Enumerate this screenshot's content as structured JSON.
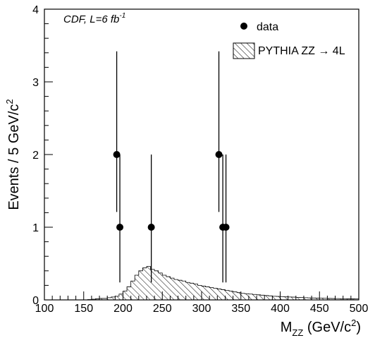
{
  "chart_data": {
    "type": "histogram+scatter",
    "xlabel": "M",
    "xlabel_sub": "ZZ",
    "xlabel_unit_pre": " (GeV/c",
    "xlabel_unit_sup": "2",
    "xlabel_unit_post": ")",
    "ylabel": "Events / 5 GeV/c",
    "ylabel_sup": "2",
    "xlim": [
      100,
      500
    ],
    "ylim": [
      0,
      4
    ],
    "x_ticks": [
      100,
      150,
      200,
      250,
      300,
      350,
      400,
      450,
      500
    ],
    "y_ticks": [
      0,
      1,
      2,
      3,
      4
    ],
    "annotation": {
      "main": "CDF, L=6 fb",
      "sup": "-1"
    },
    "legend": {
      "placement": "top-right",
      "data_label": "data",
      "mc_label": "PYTHIA ZZ → 4L"
    },
    "data_points": [
      {
        "x": 192,
        "y": 2,
        "err_low": 0.79,
        "err_high": 1.42
      },
      {
        "x": 196,
        "y": 1,
        "err_low": 0.76,
        "err_high": 1.0
      },
      {
        "x": 236,
        "y": 1,
        "err_low": 0.76,
        "err_high": 1.0
      },
      {
        "x": 322,
        "y": 2,
        "err_low": 0.79,
        "err_high": 1.42
      },
      {
        "x": 327,
        "y": 1,
        "err_low": 0.76,
        "err_high": 1.0
      },
      {
        "x": 331,
        "y": 1,
        "err_low": 0.76,
        "err_high": 1.0
      }
    ],
    "histogram": {
      "name": "PYTHIA ZZ → 4L",
      "bin_width": 5,
      "bin_start": 100,
      "values": [
        0.0,
        0.0,
        0.0,
        0.0,
        0.0,
        0.0,
        0.0,
        0.0,
        0.0,
        0.0,
        0.0,
        0.005,
        0.01,
        0.015,
        0.02,
        0.02,
        0.03,
        0.04,
        0.05,
        0.08,
        0.12,
        0.18,
        0.26,
        0.34,
        0.4,
        0.44,
        0.46,
        0.42,
        0.4,
        0.37,
        0.34,
        0.32,
        0.3,
        0.28,
        0.27,
        0.26,
        0.24,
        0.23,
        0.22,
        0.2,
        0.19,
        0.18,
        0.17,
        0.16,
        0.15,
        0.14,
        0.13,
        0.12,
        0.11,
        0.1,
        0.09,
        0.085,
        0.08,
        0.075,
        0.07,
        0.065,
        0.06,
        0.055,
        0.05,
        0.048,
        0.045,
        0.042,
        0.04,
        0.038,
        0.035,
        0.033,
        0.03,
        0.028,
        0.026,
        0.025,
        0.024,
        0.022,
        0.02,
        0.019,
        0.018,
        0.017,
        0.016,
        0.015,
        0.014,
        0.013
      ]
    }
  }
}
